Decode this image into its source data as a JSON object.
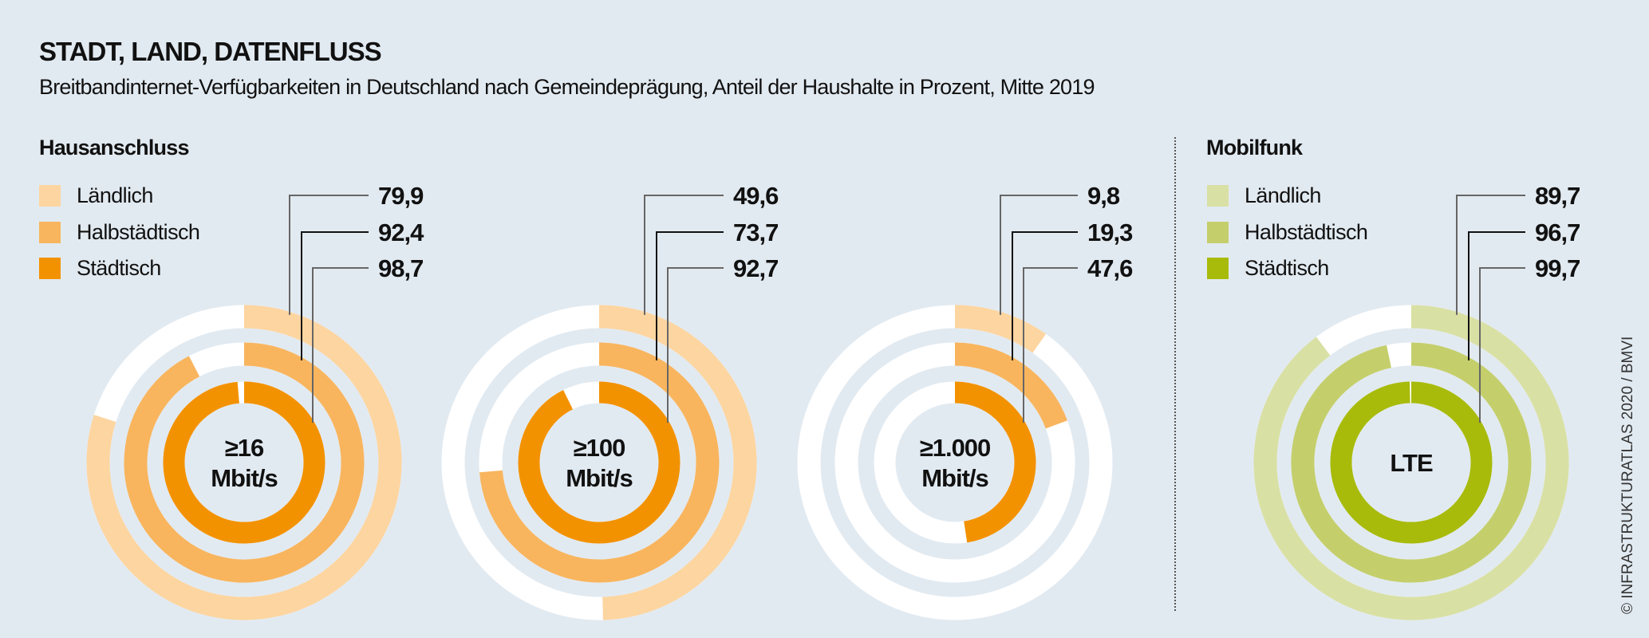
{
  "title": "STADT, LAND, DATENFLUSS",
  "subtitle": "Breitbandinternet-Verfügbarkeiten in Deutschland nach Gemeindeprägung, Anteil der Haushalte in Prozent, Mitte 2019",
  "credit": "© INFRASTRUKTURATLAS 2020 / BMVI",
  "sections": {
    "hausanschluss": {
      "label": "Hausanschluss",
      "legend": [
        "Ländlich",
        "Halbstädtisch",
        "Städtisch"
      ],
      "colors": [
        "#fdd5a0",
        "#f8b55e",
        "#f39200"
      ]
    },
    "mobilfunk": {
      "label": "Mobilfunk",
      "legend": [
        "Ländlich",
        "Halbstädtisch",
        "Städtisch"
      ],
      "colors": [
        "#d9e0a4",
        "#c4cf6c",
        "#a8bb0b"
      ]
    }
  },
  "remainder_color": "#ffffff",
  "chart_data": [
    {
      "type": "pie",
      "subtype": "concentric-donut",
      "section": "Hausanschluss",
      "center_label": [
        "≥16",
        "Mbit/s"
      ],
      "categories": [
        "Ländlich",
        "Halbstädtisch",
        "Städtisch"
      ],
      "values": [
        79.9,
        92.4,
        98.7
      ],
      "labels": [
        "79,9",
        "92,4",
        "98,7"
      ],
      "max": 100
    },
    {
      "type": "pie",
      "subtype": "concentric-donut",
      "section": "Hausanschluss",
      "center_label": [
        "≥100",
        "Mbit/s"
      ],
      "categories": [
        "Ländlich",
        "Halbstädtisch",
        "Städtisch"
      ],
      "values": [
        49.6,
        73.7,
        92.7
      ],
      "labels": [
        "49,6",
        "73,7",
        "92,7"
      ],
      "max": 100
    },
    {
      "type": "pie",
      "subtype": "concentric-donut",
      "section": "Hausanschluss",
      "center_label": [
        "≥1.000",
        "Mbit/s"
      ],
      "categories": [
        "Ländlich",
        "Halbstädtisch",
        "Städtisch"
      ],
      "values": [
        9.8,
        19.3,
        47.6
      ],
      "labels": [
        "9,8",
        "19,3",
        "47,6"
      ],
      "max": 100
    },
    {
      "type": "pie",
      "subtype": "concentric-donut",
      "section": "Mobilfunk",
      "center_label": [
        "LTE"
      ],
      "categories": [
        "Ländlich",
        "Halbstädtisch",
        "Städtisch"
      ],
      "values": [
        89.7,
        96.7,
        99.7
      ],
      "labels": [
        "89,7",
        "96,7",
        "99,7"
      ],
      "max": 100
    }
  ]
}
